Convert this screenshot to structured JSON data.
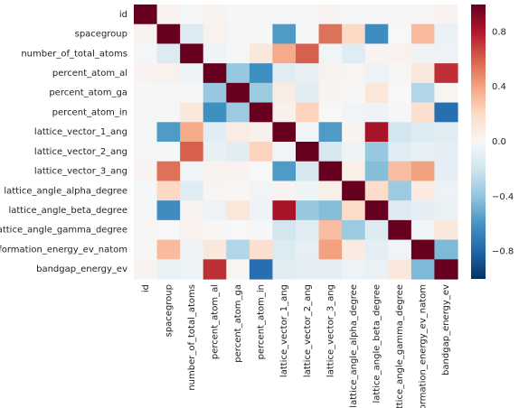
{
  "chart_data": {
    "type": "heatmap",
    "title": "",
    "xlabel": "",
    "ylabel": "",
    "labels": [
      "id",
      "spacegroup",
      "number_of_total_atoms",
      "percent_atom_al",
      "percent_atom_ga",
      "percent_atom_in",
      "lattice_vector_1_ang",
      "lattice_vector_2_ang",
      "lattice_vector_3_ang",
      "lattice_angle_alpha_degree",
      "lattice_angle_beta_degree",
      "lattice_angle_gamma_degree",
      "formation_energy_ev_natom",
      "bandgap_energy_ev"
    ],
    "matrix": [
      [
        1.0,
        0.03,
        -0.02,
        0.03,
        -0.01,
        -0.02,
        -0.02,
        -0.02,
        0.03,
        -0.01,
        -0.02,
        0.01,
        0.01,
        0.03
      ],
      [
        0.03,
        1.0,
        -0.14,
        0.04,
        -0.02,
        -0.01,
        -0.57,
        -0.01,
        0.55,
        0.21,
        -0.63,
        0.0,
        0.32,
        -0.07
      ],
      [
        -0.02,
        -0.14,
        1.0,
        -0.05,
        -0.01,
        0.11,
        0.38,
        0.6,
        -0.03,
        -0.12,
        0.03,
        0.04,
        -0.04,
        -0.06
      ],
      [
        0.03,
        0.04,
        -0.05,
        1.0,
        -0.38,
        -0.62,
        -0.11,
        -0.08,
        0.04,
        0.02,
        -0.06,
        0.01,
        0.11,
        0.74
      ],
      [
        -0.01,
        -0.02,
        -0.01,
        -0.38,
        1.0,
        -0.37,
        0.08,
        -0.11,
        0.03,
        0.01,
        0.12,
        0.0,
        -0.3,
        0.02
      ],
      [
        -0.02,
        -0.01,
        0.11,
        -0.62,
        -0.37,
        1.0,
        0.05,
        0.23,
        0.0,
        -0.03,
        -0.04,
        -0.01,
        0.17,
        -0.76
      ],
      [
        -0.02,
        -0.57,
        0.38,
        -0.11,
        0.08,
        0.05,
        1.0,
        -0.03,
        -0.57,
        0.03,
        0.83,
        -0.19,
        -0.14,
        -0.11
      ],
      [
        -0.02,
        -0.01,
        0.6,
        -0.08,
        -0.11,
        0.23,
        -0.03,
        1.0,
        -0.17,
        -0.05,
        -0.38,
        -0.12,
        -0.09,
        -0.1
      ],
      [
        0.03,
        0.55,
        -0.03,
        0.04,
        0.03,
        0.0,
        -0.57,
        -0.17,
        1.0,
        0.06,
        -0.43,
        0.31,
        0.41,
        -0.1
      ],
      [
        -0.01,
        0.21,
        -0.12,
        0.02,
        0.01,
        -0.03,
        0.03,
        -0.05,
        0.06,
        1.0,
        0.19,
        -0.37,
        0.09,
        -0.06
      ],
      [
        -0.02,
        -0.63,
        0.03,
        -0.06,
        0.12,
        -0.04,
        0.83,
        -0.38,
        -0.43,
        0.19,
        1.0,
        -0.13,
        -0.1,
        -0.07
      ],
      [
        0.01,
        0.0,
        0.04,
        0.01,
        0.0,
        -0.01,
        -0.19,
        -0.12,
        0.31,
        -0.37,
        -0.13,
        1.0,
        -0.03,
        0.11
      ],
      [
        0.01,
        0.32,
        -0.04,
        0.11,
        -0.3,
        0.17,
        -0.14,
        -0.09,
        0.41,
        0.09,
        -0.1,
        -0.03,
        1.0,
        -0.45
      ],
      [
        0.03,
        -0.07,
        -0.06,
        0.74,
        0.02,
        -0.76,
        -0.11,
        -0.1,
        -0.1,
        -0.06,
        -0.07,
        0.11,
        -0.45,
        1.0
      ]
    ],
    "colorbar": {
      "range": [
        -1,
        1
      ],
      "ticks": [
        -0.8,
        -0.4,
        0.0,
        0.4,
        0.8
      ],
      "tick_labels": [
        "−0.8",
        "−0.4",
        "0.0",
        "0.4",
        "0.8"
      ],
      "colors": [
        "#053061",
        "#2166ac",
        "#4393c3",
        "#92c5de",
        "#d1e5f0",
        "#f7f7f7",
        "#fddbc7",
        "#f4a582",
        "#d6604d",
        "#b2182b",
        "#67001f"
      ]
    },
    "grid": false,
    "legend": "colorbar-right"
  }
}
